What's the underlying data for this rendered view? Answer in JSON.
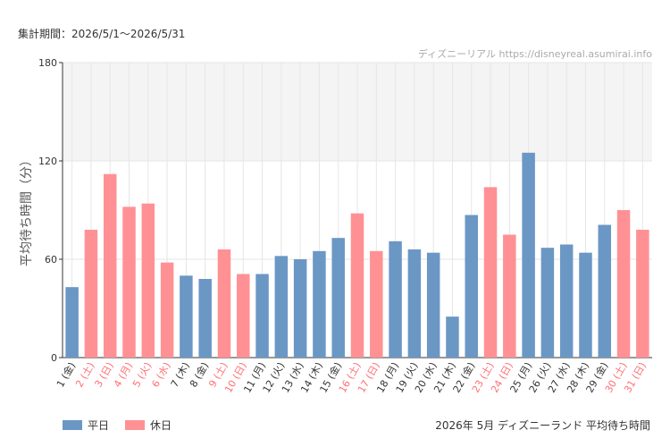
{
  "period_text": "集計期間：2026/5/1〜2026/5/31",
  "watermark": "ディズニーリアル https://disneyreal.asumirai.info",
  "footer_title": "2026年 5月 ディズニーランド 平均待ち時間",
  "colors": {
    "weekday": "#6b97c5",
    "holiday": "#ff9194",
    "holiday_label": "#ff6e73",
    "band": "#f4f4f4",
    "grid": "#e6e6e6",
    "axis": "#333333"
  },
  "legend": [
    {
      "key": "weekday",
      "label": "平日"
    },
    {
      "key": "holiday",
      "label": "休日"
    }
  ],
  "chart_data": {
    "type": "bar",
    "title": "",
    "xlabel": "",
    "ylabel": "平均待ち時間（分）",
    "ylim": [
      0,
      180
    ],
    "yticks": [
      0,
      60,
      120,
      180
    ],
    "grid": true,
    "highlight_band": [
      120,
      180
    ],
    "legend_position": "bottom-left",
    "categories": [
      "1 (金)",
      "2 (土)",
      "3 (日)",
      "4 (月)",
      "5 (火)",
      "6 (水)",
      "7 (木)",
      "8 (金)",
      "9 (土)",
      "10 (日)",
      "11 (月)",
      "12 (火)",
      "13 (水)",
      "14 (木)",
      "15 (金)",
      "16 (土)",
      "17 (日)",
      "18 (月)",
      "19 (火)",
      "20 (水)",
      "21 (木)",
      "22 (金)",
      "23 (土)",
      "24 (日)",
      "25 (月)",
      "26 (火)",
      "27 (水)",
      "28 (木)",
      "29 (金)",
      "30 (土)",
      "31 (日)"
    ],
    "day_types": [
      "weekday",
      "holiday",
      "holiday",
      "holiday",
      "holiday",
      "holiday",
      "weekday",
      "weekday",
      "holiday",
      "holiday",
      "weekday",
      "weekday",
      "weekday",
      "weekday",
      "weekday",
      "holiday",
      "holiday",
      "weekday",
      "weekday",
      "weekday",
      "weekday",
      "weekday",
      "holiday",
      "holiday",
      "weekday",
      "weekday",
      "weekday",
      "weekday",
      "weekday",
      "holiday",
      "holiday"
    ],
    "series": [
      {
        "name": "平日",
        "values": [
          43,
          null,
          null,
          null,
          null,
          null,
          50,
          48,
          null,
          null,
          51,
          62,
          60,
          65,
          73,
          null,
          null,
          71,
          66,
          64,
          25,
          87,
          null,
          null,
          125,
          67,
          69,
          64,
          81,
          null,
          null
        ]
      },
      {
        "name": "休日",
        "values": [
          null,
          78,
          112,
          92,
          94,
          58,
          null,
          null,
          66,
          51,
          null,
          null,
          null,
          null,
          null,
          88,
          65,
          null,
          null,
          null,
          null,
          null,
          104,
          75,
          null,
          null,
          null,
          null,
          null,
          90,
          78
        ]
      }
    ]
  }
}
